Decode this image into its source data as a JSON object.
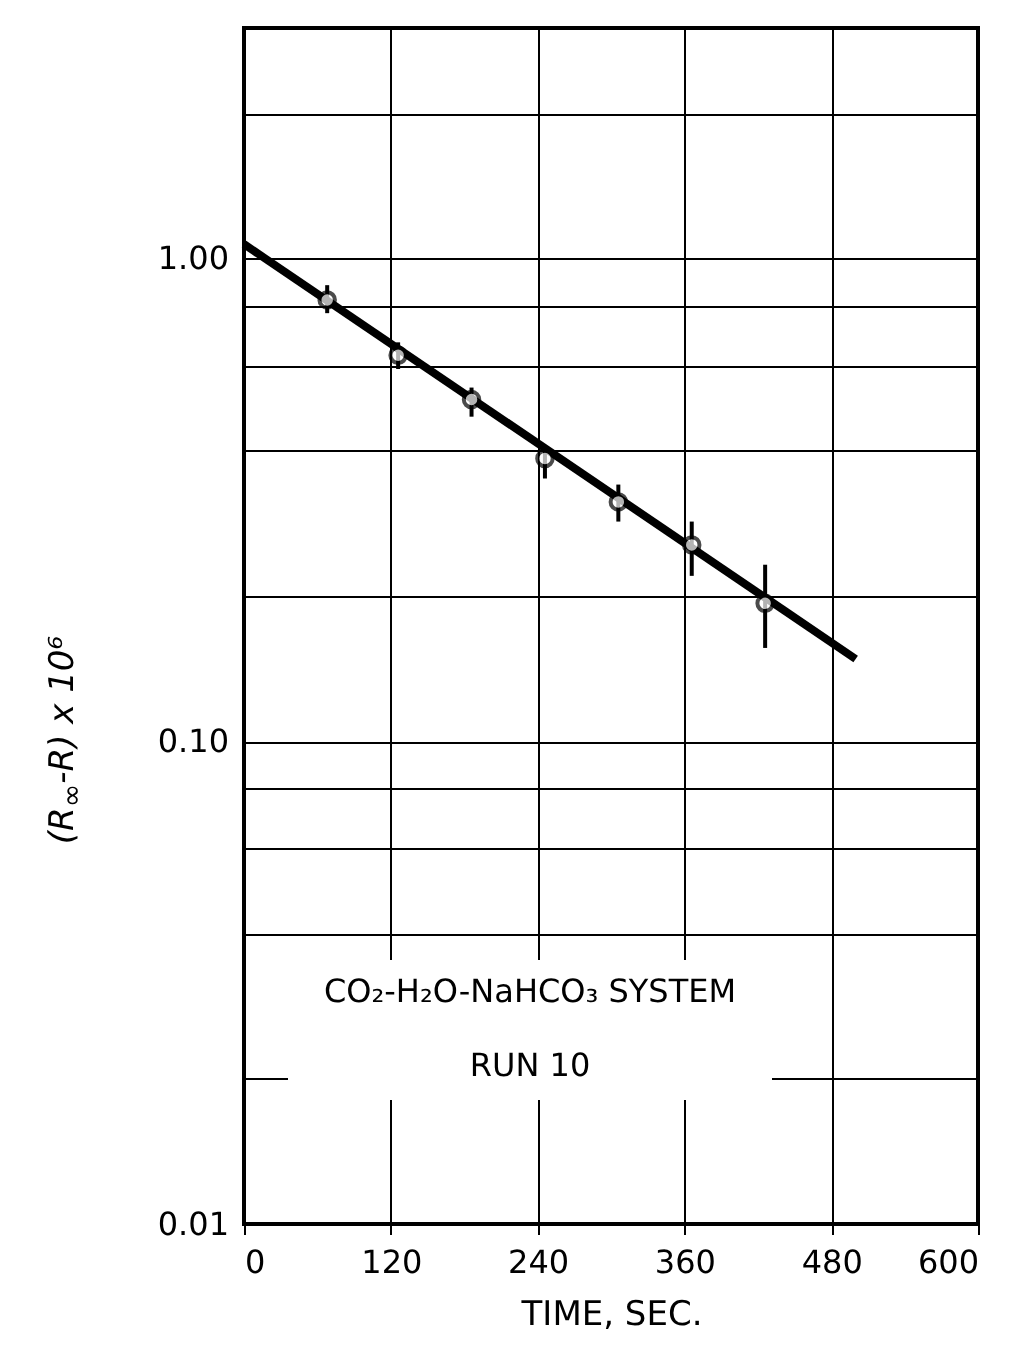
{
  "chart_data": {
    "type": "scatter",
    "xlabel": "TIME, SEC.",
    "ylabel": "(R$_{∞}$-R) x 10⁶",
    "annotations": [
      "CO₂-H₂O-NaHCO₃ SYSTEM",
      "RUN 10"
    ],
    "xlim": [
      0,
      600
    ],
    "xticks": [
      0,
      120,
      240,
      360,
      480,
      600
    ],
    "ylim": [
      0.01,
      3
    ],
    "yticks": [
      {
        "value": 0.01,
        "label": "0.01"
      },
      {
        "value": 0.02,
        "label": null
      },
      {
        "value": 0.04,
        "label": null
      },
      {
        "value": 0.06,
        "label": null
      },
      {
        "value": 0.08,
        "label": null
      },
      {
        "value": 0.1,
        "label": "0.10"
      },
      {
        "value": 0.2,
        "label": null
      },
      {
        "value": 0.4,
        "label": null
      },
      {
        "value": 0.6,
        "label": null
      },
      {
        "value": 0.8,
        "label": null
      },
      {
        "value": 1,
        "label": "1.00"
      },
      {
        "value": 2,
        "label": null
      }
    ],
    "log": "y",
    "grid": true,
    "series": [
      {
        "color": "#000000",
        "marker": "circle",
        "x": [
          68,
          126,
          186,
          246,
          306,
          366,
          426
        ],
        "values": [
          0.82,
          0.63,
          0.51,
          0.385,
          0.313,
          0.255,
          0.193
        ],
        "errors": [
          [
            0.77,
            0.88
          ],
          [
            0.59,
            0.67
          ],
          [
            0.47,
            0.54
          ],
          [
            0.35,
            0.41
          ],
          [
            0.285,
            0.34
          ],
          [
            0.22,
            0.285
          ],
          [
            0.156,
            0.232
          ]
        ]
      },
      {
        "type": "line",
        "color": "#000000",
        "marker": "none",
        "x": [
          0,
          500
        ],
        "values": [
          1.07,
          0.148
        ]
      }
    ]
  }
}
